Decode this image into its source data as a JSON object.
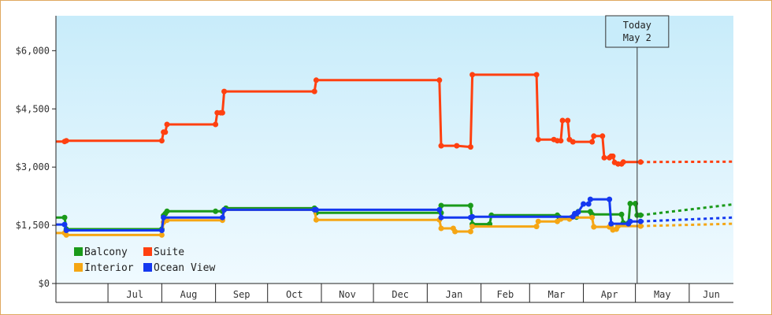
{
  "chart_data": {
    "type": "line",
    "y_ticks": [
      {
        "value": 0,
        "label": "$0"
      },
      {
        "value": 1500,
        "label": "$1,500"
      },
      {
        "value": 3000,
        "label": "$3,000"
      },
      {
        "value": 4500,
        "label": "$4,500"
      },
      {
        "value": 6000,
        "label": "$6,000"
      }
    ],
    "ylim": [
      0,
      6900
    ],
    "x_range": [
      "2025-06-06",
      "2025-07-01"
    ],
    "x_range_note": "",
    "months": [
      {
        "label": "Jul",
        "start": "2024-07-01",
        "end": "2024-08-01"
      },
      {
        "label": "Aug",
        "start": "2024-08-01",
        "end": "2024-09-01"
      },
      {
        "label": "Sep",
        "start": "2024-09-01",
        "end": "2024-10-01"
      },
      {
        "label": "Oct",
        "start": "2024-10-01",
        "end": "2024-11-01"
      },
      {
        "label": "Nov",
        "start": "2024-11-01",
        "end": "2024-12-01"
      },
      {
        "label": "Dec",
        "start": "2024-12-01",
        "end": "2025-01-01"
      },
      {
        "label": "Jan",
        "start": "2025-01-01",
        "end": "2025-02-01"
      },
      {
        "label": "Feb",
        "start": "2025-02-01",
        "end": "2025-03-01"
      },
      {
        "label": "Mar",
        "start": "2025-03-01",
        "end": "2025-04-01"
      },
      {
        "label": "Apr",
        "start": "2025-04-01",
        "end": "2025-05-01"
      },
      {
        "label": "May",
        "start": "2025-05-01",
        "end": "2025-06-01"
      },
      {
        "label": "Jun",
        "start": "2025-06-01",
        "end": "2025-07-01"
      }
    ],
    "today": {
      "date": "2025-05-02",
      "label_line1": "Today",
      "label_line2": "May 2"
    },
    "legend": {
      "placement": "bottom-left"
    },
    "grid": false,
    "series": [
      {
        "name": "Balcony",
        "color": "#1a9a1a",
        "points": [
          [
            "2024-06-01",
            1700
          ],
          [
            "2024-06-06",
            1700
          ],
          [
            "2024-06-07",
            1400
          ],
          [
            "2024-08-01",
            1400
          ],
          [
            "2024-08-02",
            1750
          ],
          [
            "2024-08-03",
            1800
          ],
          [
            "2024-08-04",
            1860
          ],
          [
            "2024-09-01",
            1860
          ],
          [
            "2024-09-05",
            1860
          ],
          [
            "2024-09-06",
            1900
          ],
          [
            "2024-09-07",
            1940
          ],
          [
            "2024-10-28",
            1940
          ],
          [
            "2024-10-29",
            1820
          ],
          [
            "2025-01-09",
            1820
          ],
          [
            "2025-01-09",
            2010
          ],
          [
            "2025-01-26",
            2010
          ],
          [
            "2025-01-27",
            1530
          ],
          [
            "2025-02-06",
            1530
          ],
          [
            "2025-02-07",
            1760
          ],
          [
            "2025-03-17",
            1760
          ],
          [
            "2025-03-18",
            1710
          ],
          [
            "2025-03-28",
            1710
          ],
          [
            "2025-03-29",
            1850
          ],
          [
            "2025-04-05",
            1850
          ],
          [
            "2025-04-06",
            1780
          ],
          [
            "2025-04-23",
            1780
          ],
          [
            "2025-04-24",
            1560
          ],
          [
            "2025-04-27",
            1560
          ],
          [
            "2025-04-28",
            2060
          ],
          [
            "2025-05-01",
            2060
          ],
          [
            "2025-05-02",
            1760
          ],
          [
            "2025-05-04",
            1760
          ]
        ],
        "projection": [
          [
            "2025-05-04",
            1760
          ],
          [
            "2025-07-01",
            2040
          ]
        ]
      },
      {
        "name": "Suite",
        "color": "#ff4010",
        "points": [
          [
            "2024-06-01",
            3660
          ],
          [
            "2024-06-06",
            3660
          ],
          [
            "2024-06-07",
            3680
          ],
          [
            "2024-08-01",
            3680
          ],
          [
            "2024-08-02",
            3900
          ],
          [
            "2024-08-03",
            3900
          ],
          [
            "2024-08-04",
            4100
          ],
          [
            "2024-09-01",
            4100
          ],
          [
            "2024-09-02",
            4400
          ],
          [
            "2024-09-04",
            4400
          ],
          [
            "2024-09-05",
            4400
          ],
          [
            "2024-09-06",
            4950
          ],
          [
            "2024-10-28",
            4950
          ],
          [
            "2024-10-29",
            5240
          ],
          [
            "2025-01-08",
            5240
          ],
          [
            "2025-01-09",
            3550
          ],
          [
            "2025-01-18",
            3550
          ],
          [
            "2025-01-26",
            3520
          ],
          [
            "2025-01-27",
            5380
          ],
          [
            "2025-03-05",
            5380
          ],
          [
            "2025-03-06",
            3710
          ],
          [
            "2025-03-15",
            3710
          ],
          [
            "2025-03-17",
            3680
          ],
          [
            "2025-03-19",
            3680
          ],
          [
            "2025-03-20",
            4200
          ],
          [
            "2025-03-23",
            4200
          ],
          [
            "2025-03-24",
            3710
          ],
          [
            "2025-03-26",
            3650
          ],
          [
            "2025-04-06",
            3650
          ],
          [
            "2025-04-07",
            3800
          ],
          [
            "2025-04-12",
            3800
          ],
          [
            "2025-04-13",
            3240
          ],
          [
            "2025-04-16",
            3240
          ],
          [
            "2025-04-17",
            3280
          ],
          [
            "2025-04-18",
            3280
          ],
          [
            "2025-04-19",
            3120
          ],
          [
            "2025-04-21",
            3080
          ],
          [
            "2025-04-23",
            3080
          ],
          [
            "2025-04-24",
            3130
          ],
          [
            "2025-05-04",
            3130
          ]
        ],
        "projection": [
          [
            "2025-05-04",
            3130
          ],
          [
            "2025-07-01",
            3140
          ]
        ]
      },
      {
        "name": "Interior",
        "color": "#f5a614",
        "points": [
          [
            "2024-06-01",
            1300
          ],
          [
            "2024-06-06",
            1300
          ],
          [
            "2024-06-07",
            1250
          ],
          [
            "2024-08-01",
            1250
          ],
          [
            "2024-08-02",
            1580
          ],
          [
            "2024-08-04",
            1630
          ],
          [
            "2024-09-05",
            1630
          ],
          [
            "2024-09-06",
            1900
          ],
          [
            "2024-10-28",
            1900
          ],
          [
            "2024-10-29",
            1640
          ],
          [
            "2025-01-08",
            1640
          ],
          [
            "2025-01-09",
            1420
          ],
          [
            "2025-01-16",
            1420
          ],
          [
            "2025-01-17",
            1340
          ],
          [
            "2025-01-26",
            1340
          ],
          [
            "2025-01-27",
            1470
          ],
          [
            "2025-03-05",
            1470
          ],
          [
            "2025-03-06",
            1600
          ],
          [
            "2025-03-17",
            1600
          ],
          [
            "2025-03-19",
            1660
          ],
          [
            "2025-03-24",
            1660
          ],
          [
            "2025-03-25",
            1700
          ],
          [
            "2025-04-06",
            1700
          ],
          [
            "2025-04-07",
            1460
          ],
          [
            "2025-04-16",
            1460
          ],
          [
            "2025-04-17",
            1460
          ],
          [
            "2025-04-18",
            1380
          ],
          [
            "2025-04-20",
            1400
          ],
          [
            "2025-04-21",
            1480
          ],
          [
            "2025-05-04",
            1480
          ]
        ],
        "projection": [
          [
            "2025-05-04",
            1480
          ],
          [
            "2025-07-01",
            1540
          ]
        ]
      },
      {
        "name": "Ocean View",
        "color": "#1438f0",
        "points": [
          [
            "2024-06-01",
            1520
          ],
          [
            "2024-06-06",
            1520
          ],
          [
            "2024-06-07",
            1370
          ],
          [
            "2024-08-01",
            1370
          ],
          [
            "2024-08-02",
            1700
          ],
          [
            "2024-09-05",
            1700
          ],
          [
            "2024-09-06",
            1900
          ],
          [
            "2024-10-28",
            1900
          ],
          [
            "2024-10-29",
            1900
          ],
          [
            "2025-01-08",
            1900
          ],
          [
            "2025-01-09",
            1700
          ],
          [
            "2025-01-26",
            1700
          ],
          [
            "2025-01-27",
            1720
          ],
          [
            "2025-03-26",
            1720
          ],
          [
            "2025-03-27",
            1800
          ],
          [
            "2025-03-28",
            1800
          ],
          [
            "2025-03-29",
            1840
          ],
          [
            "2025-04-01",
            2050
          ],
          [
            "2025-04-04",
            2050
          ],
          [
            "2025-04-05",
            2170
          ],
          [
            "2025-04-16",
            2170
          ],
          [
            "2025-04-17",
            1540
          ],
          [
            "2025-04-27",
            1540
          ],
          [
            "2025-04-28",
            1600
          ],
          [
            "2025-05-04",
            1600
          ]
        ],
        "projection": [
          [
            "2025-05-04",
            1600
          ],
          [
            "2025-07-01",
            1700
          ]
        ]
      }
    ]
  }
}
